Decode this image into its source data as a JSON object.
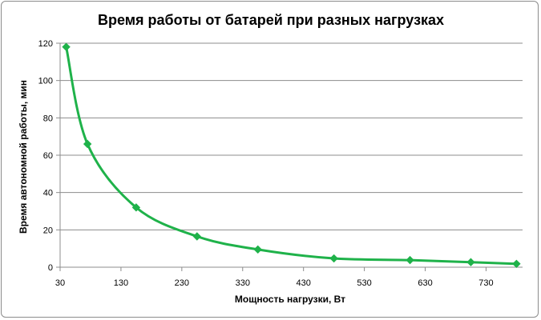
{
  "chart_data": {
    "type": "line",
    "title": "Время работы  от батарей  при разных  нагрузках",
    "xlabel": "Мощность нагрузки, Вт",
    "ylabel": "Время автономной работы, мин",
    "xlim": [
      30,
      790
    ],
    "ylim": [
      0,
      120
    ],
    "x_ticks": [
      30,
      130,
      230,
      330,
      430,
      530,
      630,
      730
    ],
    "y_ticks": [
      0,
      20,
      40,
      60,
      80,
      100,
      120
    ],
    "grid": "horizontal",
    "legend": "none",
    "smooth": true,
    "series": [
      {
        "color": "#1fb24a",
        "marker": "diamond",
        "x": [
          40,
          75,
          155,
          255,
          355,
          480,
          605,
          705,
          780
        ],
        "y": [
          118,
          66,
          32,
          16.5,
          9.5,
          4.7,
          3.8,
          2.7,
          1.8
        ]
      }
    ]
  }
}
